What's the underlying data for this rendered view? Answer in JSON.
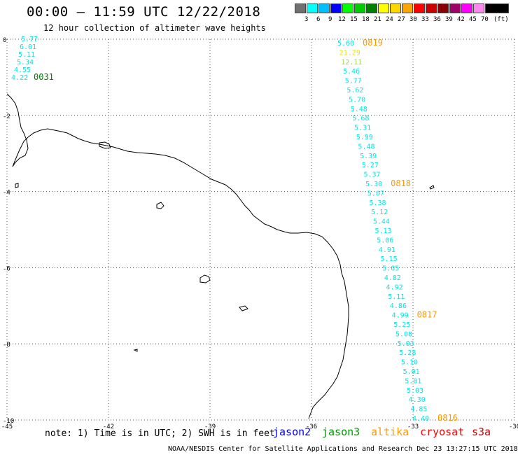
{
  "title": "00:00 – 11:59 UTC 12/22/2018",
  "subtitle": "12 hour collection of altimeter wave heights",
  "legend": {
    "unit": "(ft)",
    "items": [
      {
        "label": "3",
        "color": "#707070"
      },
      {
        "label": "6",
        "color": "#00ffff"
      },
      {
        "label": "9",
        "color": "#00bfff"
      },
      {
        "label": "12",
        "color": "#0000ff"
      },
      {
        "label": "15",
        "color": "#00ff00"
      },
      {
        "label": "18",
        "color": "#00cc00"
      },
      {
        "label": "21",
        "color": "#008000"
      },
      {
        "label": "24",
        "color": "#ffff00"
      },
      {
        "label": "27",
        "color": "#ffd700"
      },
      {
        "label": "30",
        "color": "#ffa500"
      },
      {
        "label": "33",
        "color": "#ff0000"
      },
      {
        "label": "36",
        "color": "#cc0000"
      },
      {
        "label": "39",
        "color": "#8b0000"
      },
      {
        "label": "42",
        "color": "#a0006a"
      },
      {
        "label": "45",
        "color": "#ff00ff"
      },
      {
        "label": "70",
        "color": "#ff88ee"
      },
      {
        "label": "",
        "color": "#000000"
      }
    ]
  },
  "map": {
    "lon_range": [
      -45,
      -30
    ],
    "lat_range": [
      -10,
      0
    ],
    "x_ticks": [
      "-45",
      "-42",
      "-39",
      "-36",
      "-33",
      "-30"
    ],
    "y_ticks": [
      "0",
      "-2",
      "-4",
      "-6",
      "-8",
      "-10"
    ]
  },
  "tracks": [
    {
      "values": [
        "5.77",
        "6.01",
        "5.11",
        "5.34",
        "4.55",
        "4.22"
      ],
      "value_color": "#00e5e5",
      "time": "0031",
      "time_color": "#008000"
    },
    {
      "values": [
        "5.60",
        "21.29",
        "12.11",
        "5.46",
        "5.77",
        "5.62",
        "5.70",
        "5.48",
        "5.68",
        "5.31",
        "5.99",
        "5.48",
        "5.39",
        "5.27",
        "5.37",
        "5.30",
        "5.07",
        "5.38",
        "5.12",
        "5.44",
        "5.13",
        "5.06",
        "4.91",
        "5.15",
        "5.05",
        "4.82",
        "4.92",
        "5.11",
        "4.86",
        "4.99",
        "5.25",
        "5.08",
        "5.03",
        "5.28",
        "5.10",
        "5.01",
        "5.01",
        "5.03",
        "4.30",
        "4.85",
        "4.40"
      ],
      "value_colors": {
        "default": "#00e5e5",
        "21.29": "#e5e500",
        "12.11": "#99dd33"
      },
      "times": [
        "0819",
        "0818",
        "0817",
        "0816"
      ],
      "time_color": "#ff9900"
    }
  ],
  "footer": {
    "note": "note: 1) Time is in UTC; 2) SWH is in feet",
    "satellites": [
      {
        "name": "jason2",
        "color": "#0000ff"
      },
      {
        "name": "jason3",
        "color": "#009900"
      },
      {
        "name": "altika",
        "color": "#ff9900"
      },
      {
        "name": "cryosat",
        "color": "#ff0000"
      },
      {
        "name": "s3a",
        "color": "#cc0000"
      }
    ],
    "credit": "NOAA/NESDIS Center for Satellite Applications and Research      Dec 23 13:27:15 UTC 2018"
  }
}
